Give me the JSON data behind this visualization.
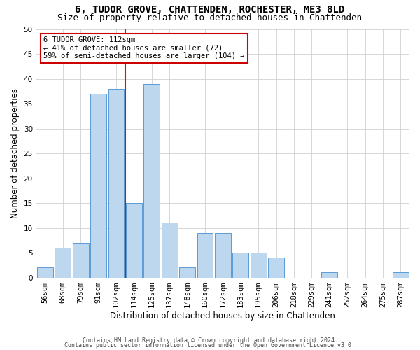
{
  "title": "6, TUDOR GROVE, CHATTENDEN, ROCHESTER, ME3 8LD",
  "subtitle": "Size of property relative to detached houses in Chattenden",
  "xlabel": "Distribution of detached houses by size in Chattenden",
  "ylabel": "Number of detached properties",
  "footnote1": "Contains HM Land Registry data © Crown copyright and database right 2024.",
  "footnote2": "Contains public sector information licensed under the Open Government Licence v3.0.",
  "bin_labels": [
    "56sqm",
    "68sqm",
    "79sqm",
    "91sqm",
    "102sqm",
    "114sqm",
    "125sqm",
    "137sqm",
    "148sqm",
    "160sqm",
    "172sqm",
    "183sqm",
    "195sqm",
    "206sqm",
    "218sqm",
    "229sqm",
    "241sqm",
    "252sqm",
    "264sqm",
    "275sqm",
    "287sqm"
  ],
  "bar_values": [
    2,
    6,
    7,
    37,
    38,
    15,
    39,
    11,
    2,
    9,
    9,
    5,
    5,
    4,
    0,
    0,
    1,
    0,
    0,
    0,
    1
  ],
  "bar_color": "#BDD7EE",
  "bar_edge_color": "#5B9BD5",
  "red_line_index": 5,
  "property_sqm": 112,
  "annotation_title": "6 TUDOR GROVE: 112sqm",
  "annotation_line1": "← 41% of detached houses are smaller (72)",
  "annotation_line2": "59% of semi-detached houses are larger (104) →",
  "annotation_box_color": "#ffffff",
  "annotation_box_edge_color": "#cc0000",
  "ylim": [
    0,
    50
  ],
  "yticks": [
    0,
    5,
    10,
    15,
    20,
    25,
    30,
    35,
    40,
    45,
    50
  ],
  "background_color": "#ffffff",
  "grid_color": "#d0d0d0",
  "title_fontsize": 10,
  "subtitle_fontsize": 9,
  "axis_label_fontsize": 8.5,
  "tick_fontsize": 7.5,
  "annotation_fontsize": 7.5,
  "footnote_fontsize": 6.0
}
